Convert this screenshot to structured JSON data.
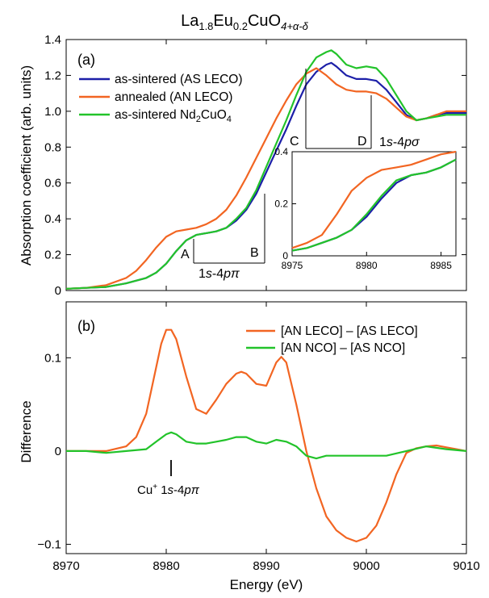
{
  "figure": {
    "title_main": "La",
    "title_sub1": "1.8",
    "title_mid1": "Eu",
    "title_sub2": "0.2",
    "title_mid2": "CuO",
    "title_sub3": "4+α-δ"
  },
  "chart_data": [
    {
      "id": "panel-a",
      "type": "line",
      "panel_label": "(a)",
      "xlabel": "",
      "ylabel": "Absorption coefficient (arb. units)",
      "xlim": [
        8970,
        9010
      ],
      "ylim": [
        0,
        1.4
      ],
      "yticks": [
        "0",
        "0.2",
        "0.4",
        "0.6",
        "0.8",
        "1.0",
        "1.2",
        "1.4"
      ],
      "xticks": [
        8970,
        8980,
        8990,
        9000,
        9010
      ],
      "grid": false,
      "legend_position": "top-left",
      "series": [
        {
          "name": "as-sintered (AS LECO)",
          "color": "#1c1fa8",
          "x": [
            8970,
            8972,
            8974,
            8976,
            8978,
            8979,
            8980,
            8981,
            8982,
            8983,
            8984,
            8985,
            8986,
            8987,
            8988,
            8989,
            8990,
            8991,
            8992,
            8993,
            8994,
            8995,
            8996,
            8996.5,
            8997,
            8998,
            8999,
            9000,
            9001,
            9002,
            9003,
            9004,
            9005,
            9006,
            9007,
            9008,
            9009,
            9010
          ],
          "y": [
            0.01,
            0.015,
            0.02,
            0.04,
            0.07,
            0.1,
            0.15,
            0.22,
            0.28,
            0.31,
            0.32,
            0.33,
            0.35,
            0.39,
            0.45,
            0.54,
            0.66,
            0.78,
            0.9,
            1.03,
            1.15,
            1.22,
            1.26,
            1.27,
            1.25,
            1.2,
            1.18,
            1.18,
            1.17,
            1.12,
            1.05,
            0.98,
            0.95,
            0.96,
            0.98,
            0.99,
            0.99,
            0.99
          ]
        },
        {
          "name": "annealed (AN LECO)",
          "color": "#f26522",
          "x": [
            8970,
            8972,
            8974,
            8976,
            8977,
            8978,
            8979,
            8980,
            8981,
            8982,
            8983,
            8984,
            8985,
            8986,
            8987,
            8988,
            8989,
            8990,
            8991,
            8992,
            8993,
            8994,
            8995,
            8996,
            8997,
            8998,
            8999,
            9000,
            9001,
            9002,
            9003,
            9004,
            9005,
            9006,
            9007,
            9008,
            9009,
            9010
          ],
          "y": [
            0.01,
            0.015,
            0.03,
            0.07,
            0.11,
            0.17,
            0.24,
            0.3,
            0.33,
            0.34,
            0.35,
            0.37,
            0.4,
            0.45,
            0.53,
            0.63,
            0.74,
            0.85,
            0.96,
            1.06,
            1.15,
            1.21,
            1.24,
            1.2,
            1.15,
            1.12,
            1.11,
            1.11,
            1.1,
            1.07,
            1.02,
            0.97,
            0.95,
            0.96,
            0.98,
            1.0,
            1.0,
            1.0
          ]
        },
        {
          "name": "as-sintered Nd",
          "name_sub": "2",
          "name_tail": "CuO",
          "name_sub2": "4",
          "color": "#22c32a",
          "x": [
            8970,
            8972,
            8974,
            8976,
            8978,
            8979,
            8980,
            8981,
            8982,
            8983,
            8984,
            8985,
            8986,
            8987,
            8988,
            8989,
            8990,
            8991,
            8992,
            8993,
            8994,
            8995,
            8996,
            8996.5,
            8997,
            8998,
            8999,
            9000,
            9001,
            9002,
            9003,
            9004,
            9005,
            9006,
            9007,
            9008,
            9009,
            9010
          ],
          "y": [
            0.01,
            0.015,
            0.02,
            0.04,
            0.07,
            0.1,
            0.15,
            0.22,
            0.28,
            0.31,
            0.32,
            0.33,
            0.35,
            0.4,
            0.46,
            0.56,
            0.69,
            0.82,
            0.95,
            1.09,
            1.22,
            1.3,
            1.33,
            1.34,
            1.32,
            1.26,
            1.24,
            1.25,
            1.24,
            1.18,
            1.09,
            1.0,
            0.95,
            0.96,
            0.97,
            0.98,
            0.98,
            0.98
          ]
        }
      ],
      "annotations": {
        "A": "A",
        "B": "B",
        "C": "C",
        "D": "D",
        "label_4ppi_pre": "1",
        "label_4ppi_s": "s",
        "label_4ppi_dash": "-4",
        "label_4ppi_ppi": "pπ",
        "label_4psig_pre": "1",
        "label_4psig_s": "s",
        "label_4psig_dash": "-4",
        "label_4psig_psig": "pσ"
      },
      "inset": {
        "xlim": [
          8975,
          8986
        ],
        "ylim": [
          0,
          0.4
        ],
        "xticks": [
          8975,
          8980,
          8985
        ],
        "yticks": [
          "0",
          "0.2",
          "0.4"
        ],
        "series": [
          {
            "color": "#1c1fa8",
            "x": [
              8975,
              8976,
              8977,
              8978,
              8979,
              8980,
              8981,
              8982,
              8983,
              8984,
              8985,
              8986
            ],
            "y": [
              0.02,
              0.03,
              0.05,
              0.07,
              0.1,
              0.15,
              0.22,
              0.28,
              0.31,
              0.32,
              0.34,
              0.37
            ]
          },
          {
            "color": "#f26522",
            "x": [
              8975,
              8976,
              8977,
              8978,
              8979,
              8980,
              8981,
              8982,
              8983,
              8984,
              8985,
              8986
            ],
            "y": [
              0.03,
              0.05,
              0.08,
              0.16,
              0.25,
              0.3,
              0.33,
              0.34,
              0.35,
              0.37,
              0.39,
              0.4
            ]
          },
          {
            "color": "#22c32a",
            "x": [
              8975,
              8976,
              8977,
              8978,
              8979,
              8980,
              8981,
              8982,
              8983,
              8984,
              8985,
              8986
            ],
            "y": [
              0.02,
              0.03,
              0.05,
              0.07,
              0.1,
              0.16,
              0.23,
              0.29,
              0.31,
              0.32,
              0.34,
              0.37
            ]
          }
        ]
      }
    },
    {
      "id": "panel-b",
      "type": "line",
      "panel_label": "(b)",
      "xlabel": "Energy (eV)",
      "ylabel": "Difference",
      "xlim": [
        8970,
        9010
      ],
      "ylim": [
        -0.11,
        0.16
      ],
      "yticks": [
        "−0.1",
        "0",
        "0.1"
      ],
      "ytick_values": [
        -0.1,
        0,
        0.1
      ],
      "xticks": [
        8970,
        8980,
        8990,
        9000,
        9010
      ],
      "grid": false,
      "legend_position": "top-right",
      "series": [
        {
          "name": "[AN LECO] – [AS LECO]",
          "color": "#f26522",
          "x": [
            8970,
            8972,
            8974,
            8976,
            8977,
            8978,
            8979,
            8979.5,
            8980,
            8980.5,
            8981,
            8982,
            8983,
            8984,
            8985,
            8986,
            8987,
            8987.5,
            8988,
            8989,
            8990,
            8991,
            8991.5,
            8992,
            8993,
            8994,
            8995,
            8996,
            8997,
            8998,
            8999,
            9000,
            9001,
            9002,
            9003,
            9004,
            9005,
            9006,
            9007,
            9008,
            9009,
            9010
          ],
          "y": [
            0.0,
            0.0,
            0.0,
            0.005,
            0.015,
            0.04,
            0.09,
            0.115,
            0.13,
            0.13,
            0.12,
            0.08,
            0.045,
            0.04,
            0.055,
            0.072,
            0.083,
            0.085,
            0.083,
            0.072,
            0.07,
            0.095,
            0.101,
            0.095,
            0.05,
            0.0,
            -0.04,
            -0.07,
            -0.085,
            -0.093,
            -0.097,
            -0.093,
            -0.08,
            -0.055,
            -0.025,
            -0.002,
            0.003,
            0.005,
            0.006,
            0.004,
            0.002,
            0.0
          ]
        },
        {
          "name": "[AN NCO] – [AS NCO]",
          "color": "#22c32a",
          "x": [
            8970,
            8972,
            8974,
            8976,
            8978,
            8979,
            8980,
            8980.5,
            8981,
            8982,
            8983,
            8984,
            8985,
            8986,
            8987,
            8988,
            8989,
            8990,
            8991,
            8992,
            8993,
            8994,
            8995,
            8996,
            8998,
            9000,
            9002,
            9004,
            9006,
            9008,
            9010
          ],
          "y": [
            0.0,
            0.0,
            -0.002,
            0.0,
            0.002,
            0.01,
            0.018,
            0.02,
            0.018,
            0.01,
            0.008,
            0.008,
            0.01,
            0.012,
            0.015,
            0.015,
            0.01,
            0.008,
            0.012,
            0.01,
            0.005,
            -0.005,
            -0.008,
            -0.005,
            -0.005,
            -0.005,
            -0.005,
            0.0,
            0.005,
            0.002,
            0.0
          ]
        }
      ],
      "annotations": {
        "cu_label": "Cu",
        "cu_sup": "+",
        "cu_rest_pre": " 1",
        "cu_rest_s": "s",
        "cu_rest_dash": "-4",
        "cu_rest_ppi": "pπ"
      }
    }
  ]
}
